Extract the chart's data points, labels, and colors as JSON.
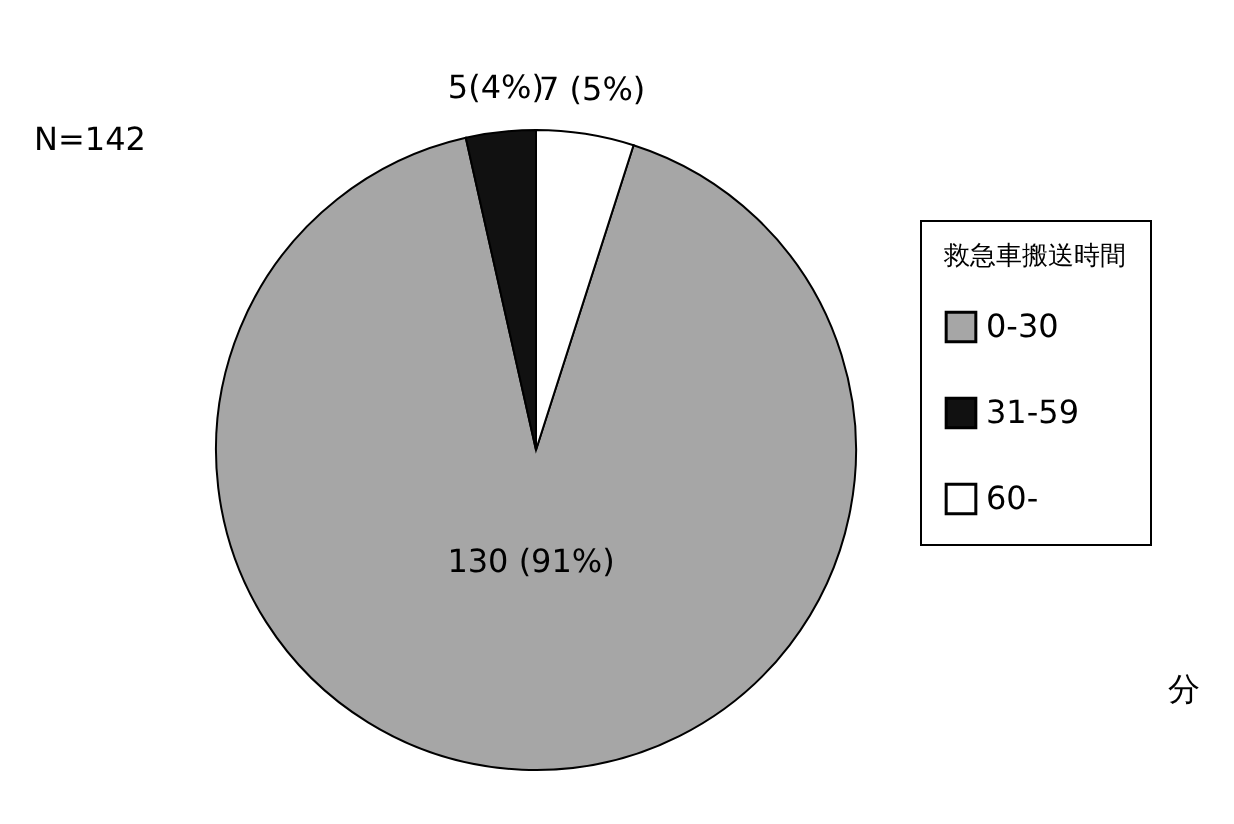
{
  "chart_data": {
    "type": "pie",
    "categories": [
      "0-30",
      "31-59",
      "60-"
    ],
    "values": [
      130,
      5,
      7
    ],
    "colors": [
      "#a6a6a6",
      "#111111",
      "#ffffff"
    ],
    "value_labels": [
      "130 (91%)",
      "5(4%)",
      "7 (5%)"
    ],
    "legend_title": "救急車搬送時間",
    "legend": "right",
    "annotations": [
      "N=142",
      "分"
    ]
  }
}
